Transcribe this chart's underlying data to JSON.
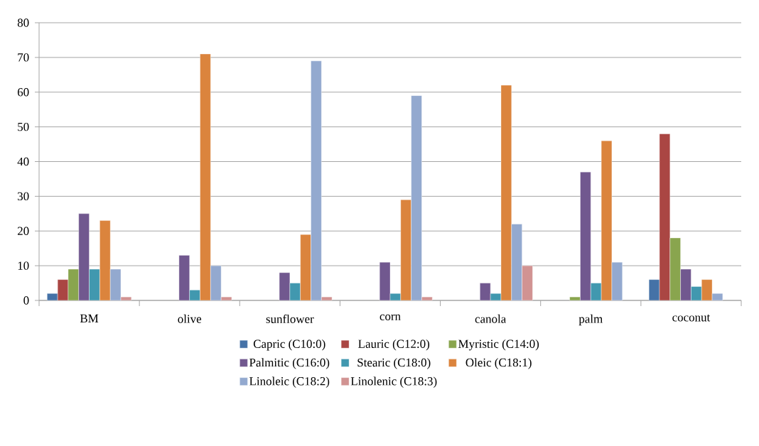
{
  "chart_data": {
    "type": "bar",
    "categories": [
      "BM",
      "olive",
      "sunflower",
      "corn",
      "canola",
      "palm",
      "coconut"
    ],
    "series": [
      {
        "name": "Capric (C10:0)",
        "color": "#4572a7",
        "values": [
          2,
          null,
          null,
          null,
          null,
          null,
          6
        ]
      },
      {
        "name": "Lauric (C12:0)",
        "color": "#aa4643",
        "values": [
          6,
          null,
          null,
          null,
          null,
          null,
          48
        ]
      },
      {
        "name": "Myristic (C14:0)",
        "color": "#89a54e",
        "values": [
          9,
          null,
          null,
          null,
          null,
          1,
          18
        ]
      },
      {
        "name": "Palmitic (C16:0)",
        "color": "#71588f",
        "values": [
          25,
          13,
          8,
          11,
          5,
          37,
          9
        ]
      },
      {
        "name": "Stearic (C18:0)",
        "color": "#4198af",
        "values": [
          9,
          3,
          5,
          2,
          2,
          5,
          4
        ]
      },
      {
        "name": "Oleic (C18:1)",
        "color": "#db843d",
        "values": [
          23,
          71,
          19,
          29,
          62,
          46,
          6
        ]
      },
      {
        "name": "Linoleic (C18:2)",
        "color": "#93a9cf",
        "values": [
          9,
          10,
          69,
          59,
          22,
          11,
          2
        ]
      },
      {
        "name": "Linolenic (C18:3)",
        "color": "#d19392",
        "values": [
          1,
          1,
          1,
          1,
          10,
          null,
          null
        ]
      }
    ],
    "ylim": [
      0,
      80
    ],
    "yticks": [
      0,
      10,
      20,
      30,
      40,
      50,
      60,
      70,
      80
    ],
    "grid": "y",
    "legend": "bottom"
  }
}
